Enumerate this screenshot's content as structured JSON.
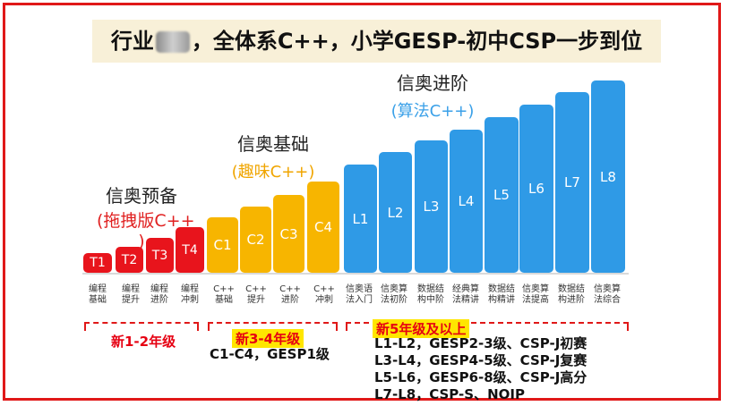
{
  "banner": {
    "title_start": "行业",
    "title_end": "，全体系C++，小学GESP-初中CSP一步到位"
  },
  "tiers": {
    "prep": {
      "title": "信奥预备",
      "subtitle_1": "(拖拽版C++",
      "subtitle_2": ")"
    },
    "basic": {
      "title": "信奥基础",
      "subtitle": "(趣味C++)"
    },
    "advanced": {
      "title": "信奥进阶",
      "subtitle": "(算法C++)"
    }
  },
  "bars": [
    {
      "label": "T1",
      "color": "#e8141c",
      "sub": [
        "编程",
        "基础"
      ]
    },
    {
      "label": "T2",
      "color": "#e8141c",
      "sub": [
        "编程",
        "提升"
      ]
    },
    {
      "label": "T3",
      "color": "#e8141c",
      "sub": [
        "编程",
        "进阶"
      ]
    },
    {
      "label": "T4",
      "color": "#e8141c",
      "sub": [
        "编程",
        "冲刺"
      ]
    },
    {
      "label": "C1",
      "color": "#f7b500",
      "sub": [
        "C++",
        "基础"
      ]
    },
    {
      "label": "C2",
      "color": "#f7b500",
      "sub": [
        "C++",
        "提升"
      ]
    },
    {
      "label": "C3",
      "color": "#f7b500",
      "sub": [
        "C++",
        "进阶"
      ]
    },
    {
      "label": "C4",
      "color": "#f7b500",
      "sub": [
        "C++",
        "冲刺"
      ]
    },
    {
      "label": "L1",
      "color": "#2f9ae6",
      "sub": [
        "信奥语",
        "法入门"
      ]
    },
    {
      "label": "L2",
      "color": "#2f9ae6",
      "sub": [
        "信奥算",
        "法初阶"
      ]
    },
    {
      "label": "L3",
      "color": "#2f9ae6",
      "sub": [
        "数据结",
        "构中阶"
      ]
    },
    {
      "label": "L4",
      "color": "#2f9ae6",
      "sub": [
        "经典算",
        "法精讲"
      ]
    },
    {
      "label": "L5",
      "color": "#2f9ae6",
      "sub": [
        "数据结",
        "构精讲"
      ]
    },
    {
      "label": "L6",
      "color": "#2f9ae6",
      "sub": [
        "信奥算",
        "法提高"
      ]
    },
    {
      "label": "L7",
      "color": "#2f9ae6",
      "sub": [
        "数据结",
        "构进阶"
      ]
    },
    {
      "label": "L8",
      "color": "#2f9ae6",
      "sub": [
        "信奥算",
        "法综合"
      ]
    }
  ],
  "grades": {
    "g12": {
      "badge": "新1-2年级"
    },
    "g34": {
      "badge": "新3-4年级",
      "note": "C1-C4，GESP1级"
    },
    "g5up": {
      "badge": "新5年级及以上",
      "lines": [
        "L1-L2，GESP2-3级、CSP-J初赛",
        "L3-L4，GESP4-5级、CSP-J复赛",
        "L5-L6，GESP6-8级、CSP-J高分",
        "L7-L8，CSP-S、NOIP"
      ]
    }
  }
}
